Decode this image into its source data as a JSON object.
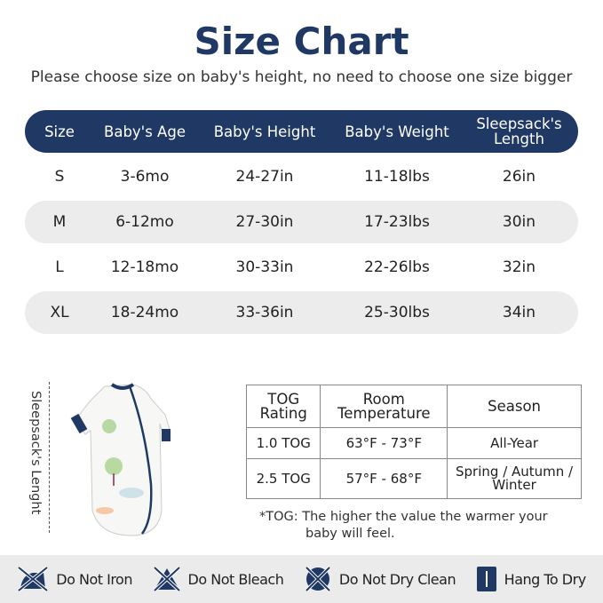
{
  "title": "Size Chart",
  "subtitle": "Please choose size on baby's height, no need to choose one size bigger",
  "size_table": {
    "headers": [
      "Size",
      "Baby's Age",
      "Baby's Height",
      "Baby's Weight",
      "Sleepsack's Length"
    ],
    "rows": [
      [
        "S",
        "3-6mo",
        "24-27in",
        "11-18lbs",
        "26in"
      ],
      [
        "M",
        "6-12mo",
        "27-30in",
        "17-23lbs",
        "30in"
      ],
      [
        "L",
        "12-18mo",
        "30-33in",
        "22-26lbs",
        "32in"
      ],
      [
        "XL",
        "18-24mo",
        "33-36in",
        "25-30lbs",
        "34in"
      ]
    ]
  },
  "length_label": "Sleepsack's Lenght",
  "tog_table": {
    "headers": [
      "TOG Rating",
      "Room Temperature",
      "Season"
    ],
    "rows": [
      [
        "1.0 TOG",
        "63°F - 73°F",
        "All-Year"
      ],
      [
        "2.5 TOG",
        "57°F - 68°F",
        "Spring / Autumn / Winter"
      ]
    ]
  },
  "note_line1": "*TOG: The higher the value the warmer your",
  "note_line2": "baby will feel.",
  "care": [
    {
      "icon": "no-iron-icon",
      "label": "Do Not Iron"
    },
    {
      "icon": "no-bleach-icon",
      "label": "Do Not Bleach"
    },
    {
      "icon": "no-dry-clean-icon",
      "label": "Do Not Dry Clean"
    },
    {
      "icon": "hang-dry-icon",
      "label": "Hang To Dry"
    }
  ],
  "colors": {
    "navy": "#1f3864",
    "row_gray": "#ececec"
  }
}
